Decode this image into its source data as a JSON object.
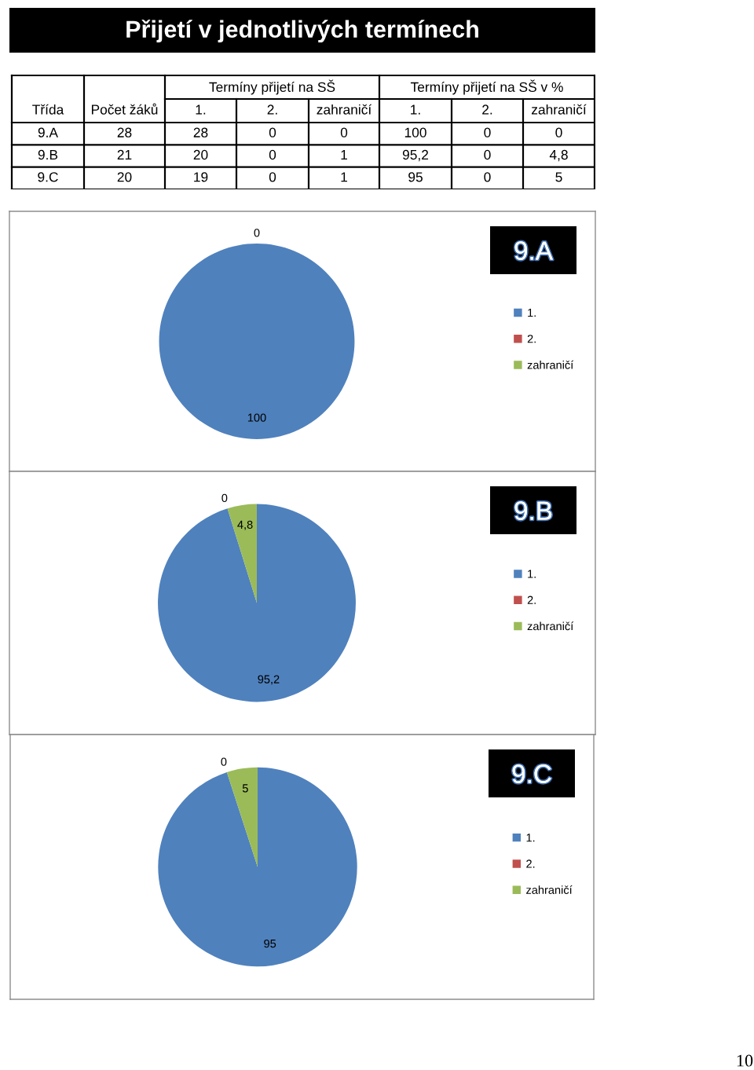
{
  "chart_data": [
    {
      "type": "other",
      "title": "Přijetí v jednotlivých termínech",
      "annotations": [
        "Termíny přijetí na SŠ",
        "Termíny přijetí na SŠ v %",
        "Třída",
        "Počet žáků",
        "1.",
        "2.",
        "zahraničí",
        "1.",
        "2.",
        "zahraničí",
        "9.A",
        "28",
        "28",
        "0",
        "0",
        "100",
        "0",
        "0",
        "9.B",
        "21",
        "20",
        "0",
        "1",
        "95,2",
        "0",
        "4,8",
        "9.C",
        "20",
        "19",
        "0",
        "1",
        "95",
        "0",
        "5"
      ]
    },
    {
      "type": "pie",
      "title": "9.A",
      "categories": [
        "1.",
        "2.",
        "zahraničí"
      ],
      "values": [
        100,
        0,
        0
      ],
      "colors": [
        "#4f81bd",
        "#c0504d",
        "#9bbb59"
      ],
      "value_labels": [
        "100",
        "0",
        null
      ],
      "legend": "right"
    },
    {
      "type": "pie",
      "title": "9.B",
      "categories": [
        "1.",
        "2.",
        "zahraničí"
      ],
      "values": [
        95.2,
        0,
        4.8
      ],
      "colors": [
        "#4f81bd",
        "#c0504d",
        "#9bbb59"
      ],
      "value_labels": [
        "95,2",
        "0",
        "4,8"
      ],
      "legend": "right"
    },
    {
      "type": "pie",
      "title": "9.C",
      "categories": [
        "1.",
        "2.",
        "zahraničí"
      ],
      "values": [
        95,
        0,
        5
      ],
      "colors": [
        "#4f81bd",
        "#c0504d",
        "#9bbb59"
      ],
      "value_labels": [
        "95",
        "0",
        "5"
      ],
      "legend": "right",
      "annotations": [
        "10"
      ]
    }
  ]
}
